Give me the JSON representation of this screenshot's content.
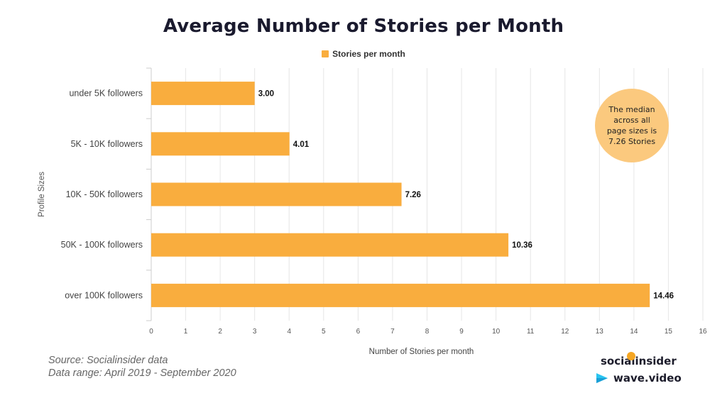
{
  "title": "Average Number of Stories per Month",
  "legend": {
    "label": "Stories per month",
    "color": "#f9ad3e"
  },
  "annotation": {
    "text": "The median across all page sizes is 7.26 Stories",
    "color": "#fbc97e"
  },
  "source": {
    "line1": "Source: Socialinsider data",
    "line2": "Data range: April 2019 - September 2020"
  },
  "logos": {
    "brand1": "socialinsider",
    "brand2": "wave.video"
  },
  "chart_data": {
    "type": "bar",
    "orientation": "horizontal",
    "title": "Average Number of Stories per Month",
    "xlabel": "Number of Stories per month",
    "ylabel": "Profile Sizes",
    "xlim": [
      0,
      16
    ],
    "x_ticks": [
      0,
      1,
      2,
      3,
      4,
      5,
      6,
      7,
      8,
      9,
      10,
      11,
      12,
      13,
      14,
      15,
      16
    ],
    "grid": true,
    "legend_position": "top-center",
    "categories": [
      "under 5K followers",
      "5K - 10K followers",
      "10K - 50K followers",
      "50K - 100K followers",
      "over 100K followers"
    ],
    "series": [
      {
        "name": "Stories per month",
        "values": [
          3.0,
          4.01,
          7.26,
          10.36,
          14.46
        ],
        "labels": [
          "3.00",
          "4.01",
          "7.26",
          "10.36",
          "14.46"
        ],
        "color": "#f9ad3e"
      }
    ]
  }
}
